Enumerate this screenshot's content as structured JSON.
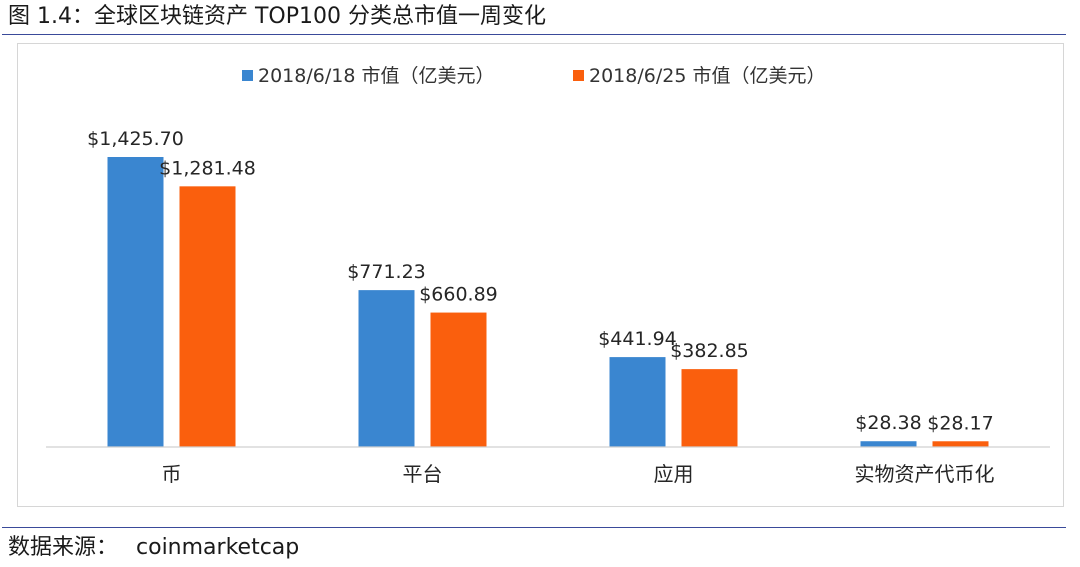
{
  "figure": {
    "title": "图 1.4：全球区块链资产 TOP100 分类总市值一周变化",
    "source_label": "数据来源：",
    "source_value": "coinmarketcap"
  },
  "colors": {
    "series1": "#3a86d0",
    "series2": "#fa5f0d",
    "axis": "#d0d0d0",
    "rule": "#3a4a9a"
  },
  "chart_data": {
    "type": "bar",
    "title": "",
    "xlabel": "",
    "ylabel": "",
    "categories": [
      "币",
      "平台",
      "应用",
      "实物资产代币化"
    ],
    "series": [
      {
        "name": "2018/6/18 市值（亿美元）",
        "values": [
          1425.7,
          771.23,
          441.94,
          28.38
        ],
        "labels": [
          "$1,425.70",
          "$771.23",
          "$441.94",
          "$28.38"
        ]
      },
      {
        "name": "2018/6/25 市值（亿美元）",
        "values": [
          1281.48,
          660.89,
          382.85,
          28.17
        ],
        "labels": [
          "$1,281.48",
          "$660.89",
          "$382.85",
          "$28.17"
        ]
      }
    ],
    "ylim": [
      0,
      1425.7
    ],
    "grid": false,
    "legend_position": "top-center"
  }
}
